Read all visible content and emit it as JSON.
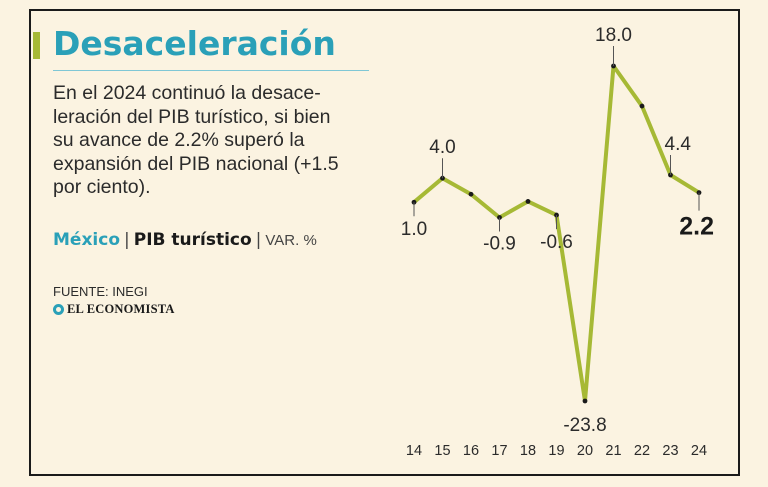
{
  "header": {
    "title": "Desaceleración",
    "description": "En el 2024 continuó la desaceleración del PIB turístico, si bien su avance de 2.2% superó la expansión del PIB nacional (+1.5 por ciento).",
    "desc_lines": [
      "En el 2024 continuó la desace-",
      "leración del PIB turístico, si bien",
      "su avance de 2.2% superó la",
      "expansión del PIB nacional (+1.5",
      "por ciento)."
    ],
    "country": "México",
    "metric": "PIB turístico",
    "separator": "|",
    "unit": "VAR. %"
  },
  "footer": {
    "source": "FUENTE: INEGI",
    "brand": "EL ECONOMISTA"
  },
  "colors": {
    "background": "#fbf3e1",
    "accent": "#2aa0b8",
    "line": "#a6b935",
    "text": "#2b2b2b"
  },
  "chart_data": {
    "type": "line",
    "title": "México | PIB turístico | VAR. %",
    "x": [
      "14",
      "15",
      "16",
      "17",
      "18",
      "19",
      "20",
      "21",
      "22",
      "23",
      "24"
    ],
    "series": [
      {
        "name": "PIB turístico",
        "values": [
          1.0,
          4.0,
          2.0,
          -0.9,
          1.1,
          -0.6,
          -23.8,
          18.0,
          13.0,
          4.4,
          2.2
        ]
      }
    ],
    "data_labels": [
      {
        "index": 0,
        "text": "1.0"
      },
      {
        "index": 1,
        "text": "4.0"
      },
      {
        "index": 3,
        "text": "-0.9"
      },
      {
        "index": 5,
        "text": "-0.6"
      },
      {
        "index": 6,
        "text": "-23.8"
      },
      {
        "index": 7,
        "text": "18.0"
      },
      {
        "index": 9,
        "text": "4.4"
      },
      {
        "index": 10,
        "text": "2.2"
      }
    ],
    "xlabel": "",
    "ylabel": "VAR. %",
    "ylim": [
      -23.8,
      18.0
    ],
    "grid": false,
    "legend": "none"
  }
}
